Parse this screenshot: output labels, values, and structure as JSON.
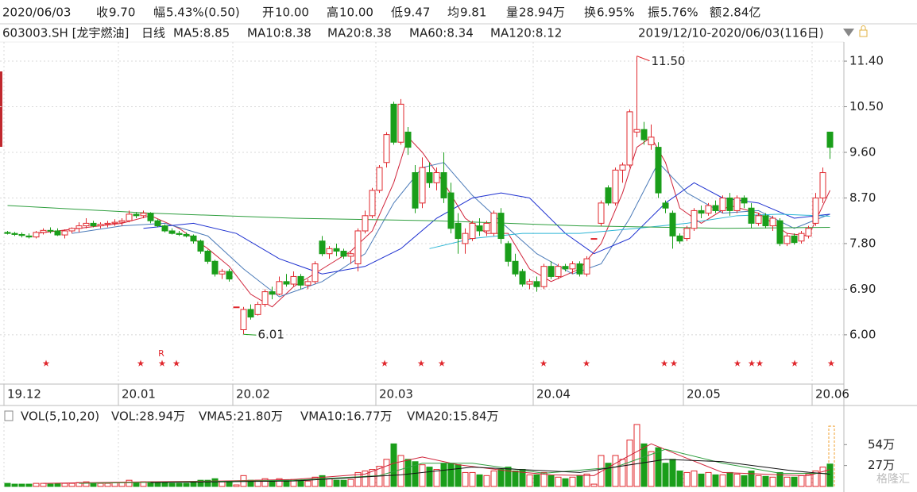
{
  "quote": {
    "date": "2020/06/03",
    "items": [
      {
        "label": "收",
        "value": "9.70",
        "color": "#e0282e"
      },
      {
        "label": "幅",
        "value": "5.43%(0.50)",
        "color": "#e0282e"
      },
      {
        "label": "开",
        "value": "10.00",
        "color": "#e0282e"
      },
      {
        "label": "高",
        "value": "10.00",
        "color": "#e0282e"
      },
      {
        "label": "低",
        "value": "9.47",
        "color": "#e0282e"
      },
      {
        "label": "均",
        "value": "9.81",
        "color": "#e0282e"
      },
      {
        "label": "量",
        "value": "28.94万",
        "color": "#222222"
      },
      {
        "label": "换",
        "value": "6.95%",
        "color": "#222222"
      },
      {
        "label": "振",
        "value": "5.76%",
        "color": "#222222"
      },
      {
        "label": "额",
        "value": "2.84亿",
        "color": "#222222"
      }
    ],
    "symbol": "603003.SH [龙宇燃油]",
    "period": "日线",
    "range": "2019/12/10-2020/06/03(116日)",
    "watermark": "格隆汇"
  },
  "chart_data": {
    "type": "candlestick",
    "up_color": "#e0282e",
    "down_color": "#1a9e1a",
    "categories": [
      "19.12",
      null,
      null,
      null,
      null,
      null,
      null,
      null,
      null,
      null,
      null,
      null,
      null,
      null,
      null,
      null,
      "20.01",
      null,
      null,
      null,
      null,
      null,
      null,
      null,
      null,
      null,
      null,
      null,
      null,
      null,
      null,
      null,
      "20.02",
      null,
      null,
      null,
      null,
      null,
      null,
      null,
      null,
      null,
      null,
      null,
      null,
      null,
      null,
      null,
      null,
      null,
      null,
      null,
      "20.03",
      null,
      null,
      null,
      null,
      null,
      null,
      null,
      null,
      null,
      null,
      null,
      null,
      null,
      null,
      null,
      null,
      null,
      null,
      null,
      null,
      null,
      "20.04",
      null,
      null,
      null,
      null,
      null,
      null,
      null,
      null,
      null,
      null,
      null,
      null,
      null,
      null,
      null,
      null,
      null,
      null,
      null,
      null,
      "20.05",
      null,
      null,
      null,
      null,
      null,
      null,
      null,
      null,
      null,
      null,
      null,
      null,
      null,
      null,
      null,
      null,
      null,
      "20.06",
      null,
      null
    ],
    "candles": [
      [
        8.02,
        8.05,
        7.98,
        8.0
      ],
      [
        8.0,
        8.03,
        7.95,
        7.98
      ],
      [
        7.98,
        8.02,
        7.92,
        7.96
      ],
      [
        7.95,
        8.0,
        7.9,
        7.93
      ],
      [
        7.93,
        8.05,
        7.9,
        8.02
      ],
      [
        8.02,
        8.1,
        7.98,
        8.06
      ],
      [
        8.06,
        8.12,
        8.0,
        8.05
      ],
      [
        8.05,
        8.1,
        7.95,
        7.97
      ],
      [
        7.97,
        8.08,
        7.9,
        8.05
      ],
      [
        8.05,
        8.12,
        8.0,
        8.1
      ],
      [
        8.1,
        8.22,
        8.02,
        8.15
      ],
      [
        8.15,
        8.3,
        8.1,
        8.2
      ],
      [
        8.2,
        8.25,
        8.12,
        8.15
      ],
      [
        8.15,
        8.22,
        8.1,
        8.18
      ],
      [
        8.18,
        8.25,
        8.12,
        8.2
      ],
      [
        8.2,
        8.28,
        8.15,
        8.22
      ],
      [
        8.22,
        8.3,
        8.15,
        8.25
      ],
      [
        8.25,
        8.45,
        8.22,
        8.38
      ],
      [
        8.38,
        8.42,
        8.3,
        8.35
      ],
      [
        8.35,
        8.45,
        8.3,
        8.4
      ],
      [
        8.4,
        8.42,
        8.2,
        8.25
      ],
      [
        8.25,
        8.28,
        8.12,
        8.15
      ],
      [
        8.15,
        8.18,
        8.02,
        8.05
      ],
      [
        8.05,
        8.1,
        7.98,
        8.0
      ],
      [
        8.0,
        8.05,
        7.95,
        7.98
      ],
      [
        7.98,
        8.02,
        7.92,
        7.95
      ],
      [
        7.95,
        7.98,
        7.8,
        7.85
      ],
      [
        7.85,
        7.88,
        7.6,
        7.65
      ],
      [
        7.65,
        7.68,
        7.4,
        7.45
      ],
      [
        7.45,
        7.48,
        7.15,
        7.2
      ],
      [
        7.2,
        7.3,
        7.1,
        7.25
      ],
      [
        7.25,
        7.3,
        7.05,
        7.1
      ],
      [
        6.55,
        6.55,
        6.55,
        6.55
      ],
      [
        6.1,
        6.55,
        6.01,
        6.5
      ],
      [
        6.5,
        6.6,
        6.3,
        6.35
      ],
      [
        6.4,
        6.65,
        6.38,
        6.6
      ],
      [
        6.6,
        6.9,
        6.55,
        6.85
      ],
      [
        6.85,
        6.95,
        6.7,
        6.8
      ],
      [
        6.8,
        7.15,
        6.78,
        7.05
      ],
      [
        7.05,
        7.2,
        6.95,
        7.0
      ],
      [
        7.0,
        7.25,
        6.95,
        7.15
      ],
      [
        7.15,
        7.2,
        6.9,
        6.98
      ],
      [
        6.98,
        7.1,
        6.9,
        7.05
      ],
      [
        7.05,
        7.45,
        7.0,
        7.4
      ],
      [
        7.85,
        7.95,
        7.55,
        7.6
      ],
      [
        7.6,
        7.75,
        7.5,
        7.7
      ],
      [
        7.7,
        7.8,
        7.55,
        7.65
      ],
      [
        7.65,
        7.7,
        7.5,
        7.55
      ],
      [
        7.55,
        7.65,
        7.4,
        7.6
      ],
      [
        7.4,
        8.1,
        7.25,
        8.05
      ],
      [
        8.05,
        8.45,
        8.0,
        8.35
      ],
      [
        8.35,
        8.9,
        8.3,
        8.85
      ],
      [
        8.85,
        9.35,
        8.8,
        9.3
      ],
      [
        9.4,
        10.0,
        9.3,
        9.95
      ],
      [
        10.55,
        10.6,
        9.75,
        9.8
      ],
      [
        9.8,
        10.65,
        9.75,
        10.55
      ],
      [
        10.0,
        10.1,
        9.55,
        9.7
      ],
      [
        9.2,
        9.35,
        8.4,
        8.5
      ],
      [
        8.6,
        9.5,
        8.5,
        9.3
      ],
      [
        9.2,
        9.4,
        8.9,
        9.0
      ],
      [
        9.0,
        9.3,
        8.85,
        9.2
      ],
      [
        9.2,
        9.6,
        8.6,
        8.7
      ],
      [
        8.8,
        9.0,
        8.0,
        8.1
      ],
      [
        8.2,
        8.4,
        7.6,
        7.9
      ],
      [
        7.8,
        8.1,
        7.6,
        8.0
      ],
      [
        7.9,
        8.25,
        7.85,
        8.2
      ],
      [
        8.15,
        8.3,
        7.95,
        8.05
      ],
      [
        8.05,
        8.25,
        7.95,
        8.2
      ],
      [
        8.0,
        8.45,
        7.95,
        8.4
      ],
      [
        8.4,
        8.5,
        7.8,
        7.9
      ],
      [
        7.8,
        7.85,
        7.35,
        7.45
      ],
      [
        7.45,
        7.6,
        7.15,
        7.2
      ],
      [
        7.25,
        7.3,
        6.95,
        7.0
      ],
      [
        7.0,
        7.1,
        6.9,
        7.05
      ],
      [
        7.05,
        7.15,
        6.85,
        6.95
      ],
      [
        6.95,
        7.4,
        6.9,
        7.35
      ],
      [
        7.35,
        7.45,
        7.1,
        7.15
      ],
      [
        7.15,
        7.4,
        7.1,
        7.35
      ],
      [
        7.35,
        7.4,
        7.25,
        7.3
      ],
      [
        7.3,
        7.45,
        7.2,
        7.4
      ],
      [
        7.4,
        7.45,
        7.15,
        7.2
      ],
      [
        7.2,
        7.55,
        7.15,
        7.5
      ],
      [
        7.9,
        7.9,
        7.9,
        7.9
      ],
      [
        8.2,
        8.65,
        8.15,
        8.6
      ],
      [
        8.9,
        8.95,
        8.55,
        8.6
      ],
      [
        8.6,
        9.3,
        8.55,
        9.25
      ],
      [
        9.25,
        9.4,
        9.0,
        9.35
      ],
      [
        9.35,
        10.45,
        9.3,
        10.4
      ],
      [
        10.0,
        11.5,
        9.9,
        10.05
      ],
      [
        10.05,
        10.2,
        9.75,
        9.85
      ],
      [
        9.75,
        10.15,
        9.65,
        9.9
      ],
      [
        9.7,
        9.8,
        8.7,
        8.8
      ],
      [
        8.6,
        8.65,
        8.4,
        8.5
      ],
      [
        8.4,
        8.45,
        7.7,
        7.95
      ],
      [
        7.95,
        8.0,
        7.8,
        7.85
      ],
      [
        7.9,
        8.15,
        7.85,
        8.1
      ],
      [
        8.1,
        8.5,
        8.05,
        8.45
      ],
      [
        8.45,
        8.55,
        8.3,
        8.4
      ],
      [
        8.4,
        8.6,
        8.35,
        8.55
      ],
      [
        8.55,
        8.65,
        8.4,
        8.45
      ],
      [
        8.45,
        8.75,
        8.4,
        8.7
      ],
      [
        8.7,
        8.8,
        8.35,
        8.45
      ],
      [
        8.45,
        8.75,
        8.4,
        8.7
      ],
      [
        8.7,
        8.75,
        8.5,
        8.6
      ],
      [
        8.5,
        8.6,
        8.1,
        8.2
      ],
      [
        8.2,
        8.4,
        8.15,
        8.35
      ],
      [
        8.35,
        8.4,
        8.1,
        8.15
      ],
      [
        8.15,
        8.35,
        8.05,
        8.3
      ],
      [
        8.25,
        8.3,
        7.75,
        7.8
      ],
      [
        7.8,
        8.0,
        7.75,
        7.95
      ],
      [
        7.95,
        8.0,
        7.78,
        7.82
      ],
      [
        7.85,
        8.05,
        7.8,
        8.0
      ],
      [
        7.95,
        8.15,
        7.9,
        8.1
      ],
      [
        8.2,
        8.8,
        8.15,
        8.7
      ],
      [
        8.7,
        9.3,
        8.6,
        9.2
      ],
      [
        10.0,
        10.0,
        9.47,
        9.7
      ]
    ],
    "volume": [
      4,
      3,
      3,
      3,
      4,
      4,
      3,
      4,
      4,
      4,
      5,
      6,
      4,
      4,
      4,
      5,
      5,
      8,
      5,
      6,
      6,
      5,
      5,
      4,
      4,
      4,
      6,
      8,
      8,
      10,
      6,
      7,
      2,
      14,
      8,
      8,
      10,
      8,
      10,
      8,
      9,
      8,
      7,
      12,
      14,
      10,
      8,
      8,
      9,
      18,
      20,
      22,
      26,
      35,
      55,
      40,
      35,
      32,
      28,
      25,
      22,
      30,
      30,
      28,
      18,
      18,
      15,
      14,
      20,
      22,
      25,
      20,
      22,
      15,
      15,
      18,
      14,
      12,
      10,
      12,
      14,
      16,
      3,
      40,
      30,
      40,
      35,
      60,
      80,
      55,
      45,
      50,
      30,
      35,
      20,
      18,
      20,
      16,
      18,
      15,
      15,
      18,
      16,
      14,
      20,
      14,
      13,
      12,
      18,
      12,
      12,
      14,
      16,
      20,
      25,
      28.94
    ],
    "ylim": [
      5.09,
      11.98
    ],
    "yticks": [
      {
        "value": 6.0,
        "label": "6.00"
      },
      {
        "value": 6.9,
        "label": "6.90"
      },
      {
        "value": 7.8,
        "label": "7.80"
      },
      {
        "value": 8.7,
        "label": "8.70"
      },
      {
        "value": 9.6,
        "label": "9.60"
      },
      {
        "value": 10.5,
        "label": "10.50"
      },
      {
        "value": 11.4,
        "label": "11.40"
      }
    ],
    "vlim": [
      0,
      83
    ],
    "vticks": [
      {
        "value": 27,
        "label": "27万"
      },
      {
        "value": 54,
        "label": "54万"
      }
    ],
    "high_label": "11.50",
    "low_label": "6.01",
    "signal_label": "R",
    "ma_series": [
      {
        "name": "MA5:8.85",
        "color": "#d0243a",
        "x": [
          4,
          10,
          16,
          20,
          24,
          28,
          31,
          34,
          37,
          40,
          44,
          48,
          51,
          54,
          56,
          58,
          61,
          64,
          67,
          70,
          73,
          76,
          80,
          83,
          86,
          88,
          90,
          92,
          94,
          97,
          101,
          105,
          109,
          112,
          115
        ],
        "values": [
          8.0,
          8.1,
          8.2,
          8.35,
          8.1,
          7.7,
          7.35,
          6.8,
          6.55,
          6.95,
          7.3,
          7.65,
          8.05,
          9.0,
          9.9,
          9.6,
          9.0,
          8.3,
          8.0,
          8.0,
          7.3,
          7.05,
          7.3,
          7.8,
          8.8,
          9.7,
          9.9,
          9.4,
          8.5,
          8.2,
          8.55,
          8.4,
          8.0,
          7.95,
          8.85
        ]
      },
      {
        "name": "MA10:8.38",
        "color": "#4a7ab8",
        "x": [
          9,
          16,
          22,
          28,
          33,
          38,
          44,
          50,
          54,
          58,
          61,
          65,
          70,
          74,
          79,
          83,
          87,
          91,
          95,
          100,
          105,
          110,
          115
        ],
        "values": [
          8.0,
          8.15,
          8.2,
          7.95,
          7.3,
          6.75,
          7.05,
          7.6,
          8.6,
          9.3,
          9.4,
          8.75,
          8.1,
          7.6,
          7.2,
          7.4,
          8.3,
          9.4,
          8.8,
          8.4,
          8.45,
          8.1,
          8.38
        ]
      },
      {
        "name": "MA20:8.38",
        "color": "#1c2fd0",
        "x": [
          19,
          26,
          32,
          38,
          44,
          50,
          55,
          60,
          65,
          69,
          73,
          78,
          82,
          87,
          92,
          96,
          100,
          105,
          110,
          115
        ],
        "values": [
          8.1,
          8.2,
          8.0,
          7.5,
          7.2,
          7.35,
          7.7,
          8.3,
          8.7,
          8.8,
          8.7,
          8.0,
          7.6,
          7.9,
          8.6,
          9.0,
          8.7,
          8.6,
          8.3,
          8.38
        ]
      },
      {
        "name": "MA60:8.34",
        "color": "#2bb5d5",
        "x": [
          59,
          65,
          72,
          80,
          88,
          95,
          102,
          108,
          115
        ],
        "values": [
          7.7,
          7.9,
          8.0,
          8.0,
          8.1,
          8.2,
          8.35,
          8.38,
          8.34
        ]
      },
      {
        "name": "MA120:8.12",
        "color": "#2e9e3e",
        "x": [
          0,
          20,
          40,
          60,
          80,
          100,
          115
        ],
        "values": [
          8.55,
          8.4,
          8.3,
          8.25,
          8.15,
          8.1,
          8.12
        ]
      }
    ],
    "volume_title": "VOL(5,10,20)",
    "volume_label": "VOL:28.94万",
    "vma_series": [
      {
        "name": "VMA5:21.80万",
        "color": "#d0243a",
        "x": [
          5,
          20,
          30,
          40,
          50,
          54,
          58,
          63,
          70,
          76,
          82,
          86,
          90,
          94,
          100,
          108,
          112,
          115
        ],
        "values": [
          4,
          6,
          7,
          9,
          16,
          30,
          38,
          28,
          20,
          15,
          14,
          35,
          55,
          40,
          18,
          15,
          14,
          21.8
        ]
      },
      {
        "name": "VMA10:16.77万",
        "color": "#2e9e3e",
        "x": [
          10,
          25,
          40,
          52,
          58,
          65,
          75,
          85,
          92,
          100,
          108,
          115
        ],
        "values": [
          4,
          6,
          8,
          14,
          30,
          30,
          17,
          25,
          48,
          30,
          17,
          16.77
        ]
      },
      {
        "name": "VMA20:15.84万",
        "color": "#111111",
        "x": [
          20,
          40,
          55,
          65,
          80,
          92,
          100,
          110,
          115
        ],
        "values": [
          5,
          7,
          15,
          25,
          18,
          35,
          32,
          20,
          15.84
        ]
      }
    ]
  }
}
